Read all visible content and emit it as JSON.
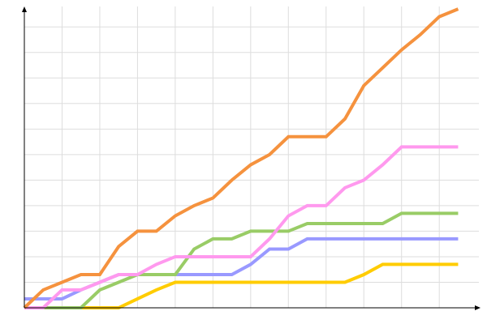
{
  "chart_data": {
    "type": "line",
    "x": [
      0,
      1,
      2,
      3,
      4,
      5,
      6,
      7,
      8,
      9,
      10,
      11,
      12,
      13,
      14,
      15,
      16,
      17,
      18,
      19,
      20,
      21,
      22,
      23
    ],
    "xlim": [
      0,
      24.1
    ],
    "ylim": [
      0,
      11.8
    ],
    "xticks": [
      2,
      4,
      6,
      8,
      10,
      12,
      14,
      16,
      18,
      20,
      22
    ],
    "yticks": [
      1,
      2,
      3,
      4,
      5,
      6,
      7,
      8,
      9,
      10,
      11
    ],
    "grid": true,
    "series": [
      {
        "color": "#ffcc00",
        "values": [
          0,
          0,
          0,
          0,
          0,
          0,
          0.35,
          0.7,
          1.0,
          1.0,
          1.0,
          1.0,
          1.0,
          1.0,
          1.0,
          1.0,
          1.0,
          1.0,
          1.3,
          1.7,
          1.7,
          1.7,
          1.7,
          1.7
        ]
      },
      {
        "color": "#9999ff",
        "values": [
          0.35,
          0.35,
          0.35,
          0.7,
          1.0,
          1.3,
          1.3,
          1.3,
          1.3,
          1.3,
          1.3,
          1.3,
          1.7,
          2.3,
          2.3,
          2.7,
          2.7,
          2.7,
          2.7,
          2.7,
          2.7,
          2.7,
          2.7,
          2.7
        ]
      },
      {
        "color": "#99cc66",
        "values": [
          0,
          0,
          0,
          0,
          0.7,
          1.0,
          1.3,
          1.3,
          1.3,
          2.3,
          2.7,
          2.7,
          3.0,
          3.0,
          3.0,
          3.3,
          3.3,
          3.3,
          3.3,
          3.3,
          3.7,
          3.7,
          3.7,
          3.7
        ]
      },
      {
        "color": "#ff99ee",
        "values": [
          0,
          0,
          0.7,
          0.7,
          1.0,
          1.3,
          1.3,
          1.7,
          2.0,
          2.0,
          2.0,
          2.0,
          2.0,
          2.7,
          3.6,
          4.0,
          4.0,
          4.7,
          5.0,
          5.6,
          6.3,
          6.3,
          6.3,
          6.3
        ]
      },
      {
        "color": "#f5923e",
        "values": [
          0,
          0.7,
          1.0,
          1.3,
          1.3,
          2.4,
          3.0,
          3.0,
          3.6,
          4.0,
          4.3,
          5.0,
          5.6,
          6.0,
          6.7,
          6.7,
          6.7,
          7.4,
          8.7,
          9.4,
          10.1,
          10.7,
          11.4,
          11.7
        ]
      }
    ]
  }
}
